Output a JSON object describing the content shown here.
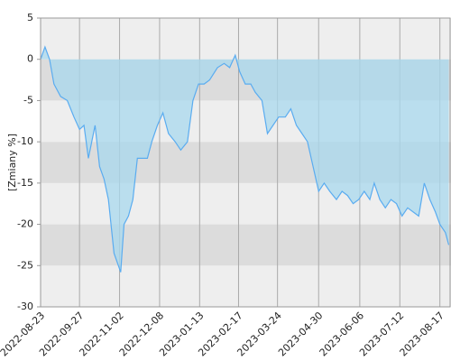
{
  "chart_data": {
    "type": "area",
    "y_label": "[Zmiany %]",
    "x": [
      "2022-08-23",
      "2022-08-27",
      "2022-08-31",
      "2022-09-04",
      "2022-09-10",
      "2022-09-16",
      "2022-09-22",
      "2022-09-27",
      "2022-10-01",
      "2022-10-05",
      "2022-10-11",
      "2022-10-15",
      "2022-10-19",
      "2022-10-23",
      "2022-10-28",
      "2022-11-03",
      "2022-11-06",
      "2022-11-10",
      "2022-11-14",
      "2022-11-18",
      "2022-11-23",
      "2022-11-27",
      "2022-12-01",
      "2022-12-06",
      "2022-12-11",
      "2022-12-16",
      "2022-12-22",
      "2022-12-27",
      "2023-01-02",
      "2023-01-07",
      "2023-01-12",
      "2023-01-17",
      "2023-01-22",
      "2023-01-29",
      "2023-02-04",
      "2023-02-09",
      "2023-02-14",
      "2023-02-18",
      "2023-02-23",
      "2023-02-28",
      "2023-03-04",
      "2023-03-10",
      "2023-03-15",
      "2023-03-20",
      "2023-03-25",
      "2023-03-31",
      "2023-04-05",
      "2023-04-10",
      "2023-04-15",
      "2023-04-20",
      "2023-04-25",
      "2023-04-30",
      "2023-05-05",
      "2023-05-10",
      "2023-05-16",
      "2023-05-21",
      "2023-05-26",
      "2023-05-31",
      "2023-06-05",
      "2023-06-10",
      "2023-06-15",
      "2023-06-19",
      "2023-06-24",
      "2023-06-29",
      "2023-07-04",
      "2023-07-09",
      "2023-07-14",
      "2023-07-19",
      "2023-07-24",
      "2023-07-29",
      "2023-08-03",
      "2023-08-08",
      "2023-08-13",
      "2023-08-17",
      "2023-08-22",
      "2023-08-25"
    ],
    "values": [
      0,
      1.5,
      0,
      -3,
      -4.5,
      -5,
      -7,
      -8.5,
      -8,
      -12,
      -8,
      -13,
      -14.5,
      -17,
      -23.5,
      -25.8,
      -20,
      -19,
      -17,
      -12,
      -12,
      -12,
      -10,
      -8,
      -6.5,
      -9,
      -10,
      -11,
      -10,
      -5,
      -3,
      -3,
      -2.5,
      -1,
      -0.5,
      -1,
      0.5,
      -1.5,
      -3,
      -3,
      -4,
      -5,
      -9,
      -8,
      -7,
      -7,
      -6,
      -8,
      -9,
      -10,
      -13,
      -16,
      -15,
      -16,
      -17,
      -16,
      -16.5,
      -17.5,
      -17,
      -16,
      -17,
      -15,
      -17,
      -18,
      -17,
      -17.5,
      -19,
      -18,
      -18.5,
      -19,
      -15,
      -17,
      -18.5,
      -20,
      -21,
      -22.5
    ],
    "color": "#5aacf0",
    "fill_color": "#a8d8ee",
    "xlim": [
      "2022-08-23",
      "2023-08-27"
    ],
    "xticks": [
      "2022-08-23",
      "2022-09-27",
      "2022-11-02",
      "2022-12-08",
      "2023-01-13",
      "2023-02-17",
      "2023-03-24",
      "2023-04-30",
      "2023-06-06",
      "2023-07-12",
      "2023-08-17"
    ],
    "ylim": [
      -30,
      5
    ],
    "yticks": [
      -30,
      -25,
      -20,
      -15,
      -10,
      -5,
      0,
      5
    ],
    "grid": true
  }
}
